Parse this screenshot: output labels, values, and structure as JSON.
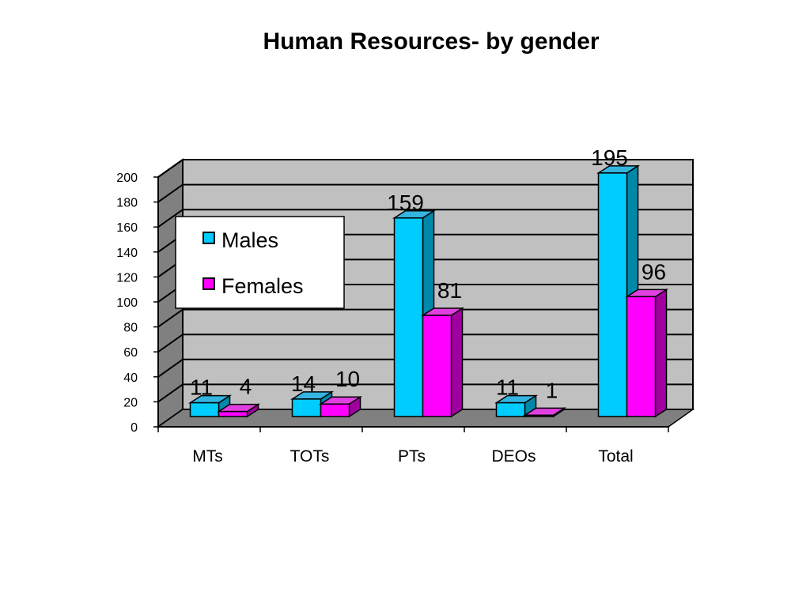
{
  "chart_data": {
    "type": "bar",
    "title": "Human Resources- by gender",
    "categories": [
      "MTs",
      "TOTs",
      "PTs",
      "DEOs",
      "Total"
    ],
    "series": [
      {
        "name": "Males",
        "values": [
          11,
          14,
          159,
          11,
          195
        ]
      },
      {
        "name": "Females",
        "values": [
          4,
          10,
          81,
          1,
          96
        ]
      }
    ],
    "ylim": [
      0,
      200
    ],
    "yticks": [
      0,
      20,
      40,
      60,
      80,
      100,
      120,
      140,
      160,
      180,
      200
    ],
    "grid": true,
    "legend_position": "top-left",
    "three_d": true,
    "colors": {
      "males": "#00CCFF",
      "males_top": "#33B5E0",
      "males_side": "#0088AA",
      "females": "#FF00FF",
      "females_top": "#E040E0",
      "females_side": "#A000A0",
      "wall": "#C0C0C0",
      "side_wall": "#808080",
      "floor": "#808080"
    }
  }
}
